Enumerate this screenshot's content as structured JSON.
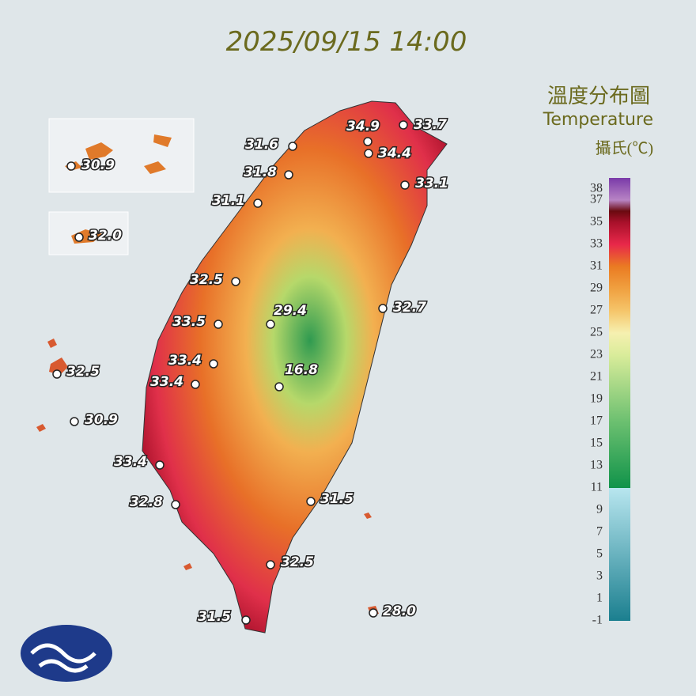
{
  "title": "2025/09/15 14:00",
  "legend": {
    "title": "溫度分布圖",
    "subtitle": "Temperature",
    "unit": "攝氏(℃)",
    "ticks": [
      38,
      37,
      35,
      33,
      31,
      29,
      27,
      25,
      23,
      21,
      19,
      17,
      15,
      13,
      11,
      9,
      7,
      5,
      3,
      1,
      -1
    ]
  },
  "stations": [
    "34.9",
    "33.7",
    "34.4",
    "31.6",
    "31.8",
    "33.1",
    "31.1",
    "32.5",
    "29.4",
    "32.7",
    "33.5",
    "33.4",
    "16.8",
    "33.4",
    "33.4",
    "32.8",
    "31.5",
    "32.5",
    "31.5",
    "28.0",
    "30.9",
    "32.0",
    "32.5",
    "30.9"
  ]
}
